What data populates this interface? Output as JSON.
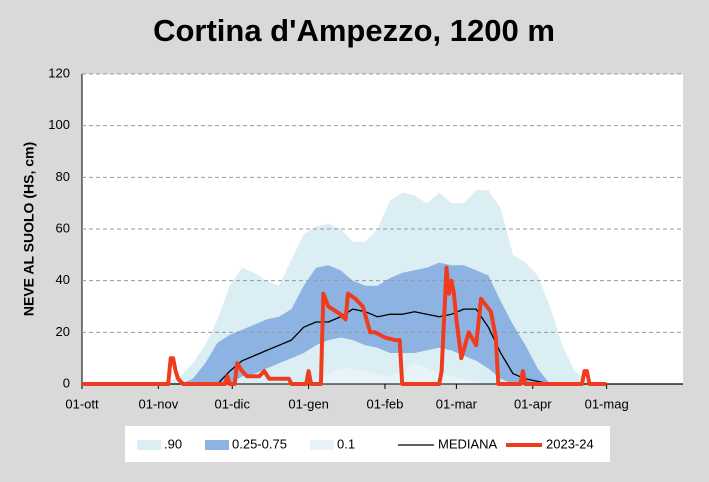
{
  "chart_data": {
    "type": "line",
    "title": "Cortina d'Ampezzo, 1200 m",
    "y_label": "NEVE AL SUOLO (HS, cm)",
    "x": [
      0,
      5,
      10,
      15,
      20,
      25,
      30,
      35,
      40,
      45,
      50,
      55,
      60,
      65,
      70,
      75,
      80,
      85,
      90,
      95,
      100,
      105,
      110,
      115,
      120,
      125,
      130,
      135,
      140,
      145,
      150,
      155,
      160,
      165,
      170,
      175,
      180,
      185,
      190,
      195,
      200,
      205,
      210,
      215,
      220,
      244
    ],
    "xlim": [
      0,
      244
    ],
    "xticks": [
      {
        "value": 0,
        "label": "01-ott"
      },
      {
        "value": 31,
        "label": "01-nov"
      },
      {
        "value": 61,
        "label": "01-dic"
      },
      {
        "value": 92,
        "label": "01-gen"
      },
      {
        "value": 123,
        "label": "01-feb"
      },
      {
        "value": 152,
        "label": "01-mar"
      },
      {
        "value": 183,
        "label": "01-apr"
      },
      {
        "value": 213,
        "label": "01-mag"
      }
    ],
    "ylim": [
      0,
      120
    ],
    "yticks": [
      0,
      20,
      40,
      60,
      80,
      100,
      120
    ],
    "grid": true,
    "legend": "bottom",
    "series": [
      {
        "name": ".90",
        "kind": "area",
        "color": "#dbeef4",
        "values": [
          0,
          0,
          0,
          0,
          0,
          0,
          0,
          1,
          3,
          8,
          15,
          25,
          38,
          45,
          43,
          40,
          38,
          48,
          58,
          61,
          62,
          60,
          55,
          55,
          60,
          71,
          74,
          73,
          70,
          74,
          70,
          70,
          75,
          75,
          68,
          50,
          47,
          42,
          30,
          15,
          5,
          1,
          0,
          0,
          0,
          0
        ]
      },
      {
        "name": "0.25-0.75",
        "kind": "band",
        "color": "#8db3e2",
        "low": [
          0,
          0,
          0,
          0,
          0,
          0,
          0,
          0,
          0,
          0,
          0,
          0,
          0,
          3,
          4,
          6,
          8,
          10,
          12,
          15,
          17,
          18,
          17,
          15,
          14,
          12,
          12,
          12,
          13,
          14,
          13,
          11,
          9,
          6,
          2,
          0,
          0,
          0,
          0,
          0,
          0,
          0,
          0,
          0,
          0,
          0
        ],
        "high": [
          0,
          0,
          0,
          0,
          0,
          0,
          0,
          0,
          0,
          2,
          8,
          16,
          19,
          21,
          23,
          25,
          26,
          29,
          38,
          45,
          46,
          44,
          40,
          38,
          38,
          41,
          43,
          44,
          45,
          47,
          46,
          46,
          44,
          42,
          32,
          23,
          15,
          6,
          0,
          0,
          0,
          0,
          0,
          0,
          0,
          0
        ]
      },
      {
        "name": "0.1",
        "kind": "area",
        "color": "#e8f3f8",
        "values": [
          0,
          0,
          0,
          0,
          0,
          0,
          0,
          0,
          0,
          0,
          0,
          0,
          0,
          0,
          0,
          0,
          0,
          0,
          1,
          2,
          4,
          6,
          6,
          5,
          4,
          3,
          5,
          8,
          6,
          4,
          3,
          2,
          1,
          0,
          0,
          0,
          0,
          0,
          0,
          0,
          0,
          0,
          0,
          0,
          0,
          0
        ]
      },
      {
        "name": "MEDIANA",
        "kind": "line",
        "color": "#000000",
        "width": 1.3,
        "values": [
          0,
          0,
          0,
          0,
          0,
          0,
          0,
          0,
          0,
          0,
          0,
          0,
          5,
          9,
          11,
          13,
          15,
          17,
          22,
          24,
          24,
          26,
          29,
          28,
          26,
          27,
          27,
          28,
          27,
          26,
          27,
          29,
          29,
          22,
          12,
          4,
          2,
          1,
          0,
          0,
          0,
          0,
          0,
          0,
          0,
          0
        ]
      },
      {
        "name": "2023-24",
        "kind": "line",
        "color": "#f03c1e",
        "width": 4,
        "x": [
          0,
          35,
          36,
          37,
          38,
          39,
          41,
          58,
          59,
          60,
          62,
          63,
          65,
          67,
          72,
          74,
          76,
          84,
          85,
          91,
          92,
          93,
          97,
          98,
          100,
          105,
          107,
          108,
          111,
          114,
          117,
          119,
          123,
          127,
          129,
          130,
          145,
          146,
          148,
          149,
          150,
          151,
          152,
          154,
          157,
          160,
          162,
          166,
          168,
          169,
          178,
          179,
          180,
          203,
          204,
          205,
          206,
          213
        ],
        "values": [
          0,
          0,
          10,
          10,
          5,
          2,
          0,
          0,
          3,
          0,
          0,
          8,
          5,
          3,
          3,
          5,
          2,
          2,
          0,
          0,
          5,
          0,
          0,
          35,
          30,
          27,
          25,
          35,
          33,
          30,
          20,
          20,
          18,
          17,
          17,
          0,
          0,
          5,
          45,
          35,
          40,
          35,
          25,
          10,
          20,
          15,
          33,
          28,
          18,
          0,
          0,
          5,
          0,
          0,
          5,
          5,
          0,
          0
        ]
      }
    ]
  }
}
